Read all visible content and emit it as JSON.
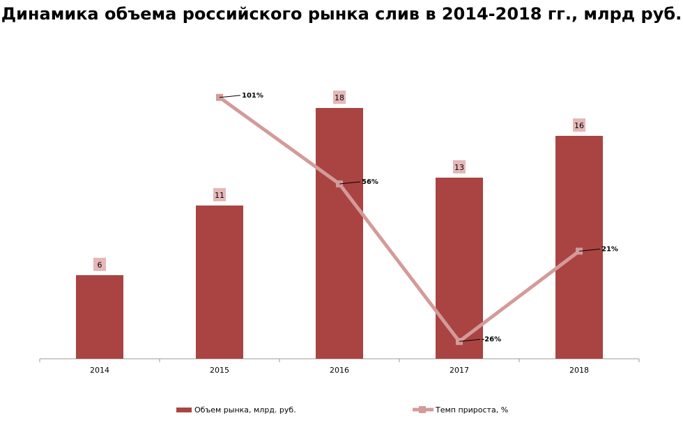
{
  "chart_data": {
    "type": "bar",
    "title": "Динамика объема российского рынка слив в 2014-2018 гг., млрд руб.",
    "categories": [
      "2014",
      "2015",
      "2016",
      "2017",
      "2018"
    ],
    "series": [
      {
        "name": "Объем рынка, млрд. руб.",
        "type": "bar",
        "values": [
          6,
          11,
          18,
          13,
          16
        ],
        "labels": [
          "6",
          "11",
          "18",
          "13",
          "16"
        ],
        "color": "#a94442"
      },
      {
        "name": "Темп прироста, %",
        "type": "line",
        "values": [
          null,
          101,
          56,
          -26,
          21
        ],
        "labels": [
          "",
          "101%",
          "56%",
          "-26%",
          "21%"
        ],
        "color": "#d49a9a"
      }
    ],
    "ylim": [
      0,
      20
    ],
    "y2lim": [
      -35,
      110
    ],
    "grid": false,
    "legend": "bottom"
  }
}
